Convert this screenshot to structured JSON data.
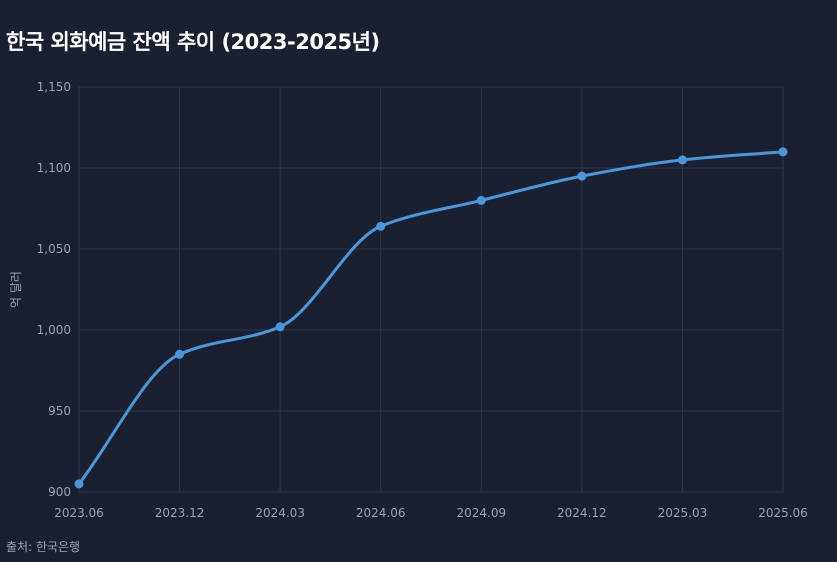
{
  "page": {
    "title": "한국 외화예금 잔액 추이 (2023-2025년)",
    "source": "출처: 한국은행"
  },
  "chart_data": {
    "type": "line",
    "title": "한국 외화예금 잔액 추이 (2023-2025년)",
    "xlabel": "",
    "ylabel": "억 달러",
    "categories": [
      "2023.06",
      "2023.12",
      "2024.03",
      "2024.06",
      "2024.09",
      "2024.12",
      "2025.03",
      "2025.06"
    ],
    "series": [
      {
        "values": [
          905,
          985,
          1002,
          1064,
          1080,
          1095,
          1105,
          1110
        ],
        "color": "#4a98dc"
      }
    ],
    "ylim": [
      900,
      1150
    ],
    "yticks": [
      900,
      950,
      1000,
      1050,
      1100,
      1150
    ],
    "ytick_labels": [
      "900",
      "950",
      "1,000",
      "1,050",
      "1,100",
      "1,150"
    ],
    "grid": true,
    "smooth": true,
    "markers": true,
    "background_color": "#1b2030",
    "grid_color": "#2f3647",
    "text_color": "#9aa3b2"
  }
}
